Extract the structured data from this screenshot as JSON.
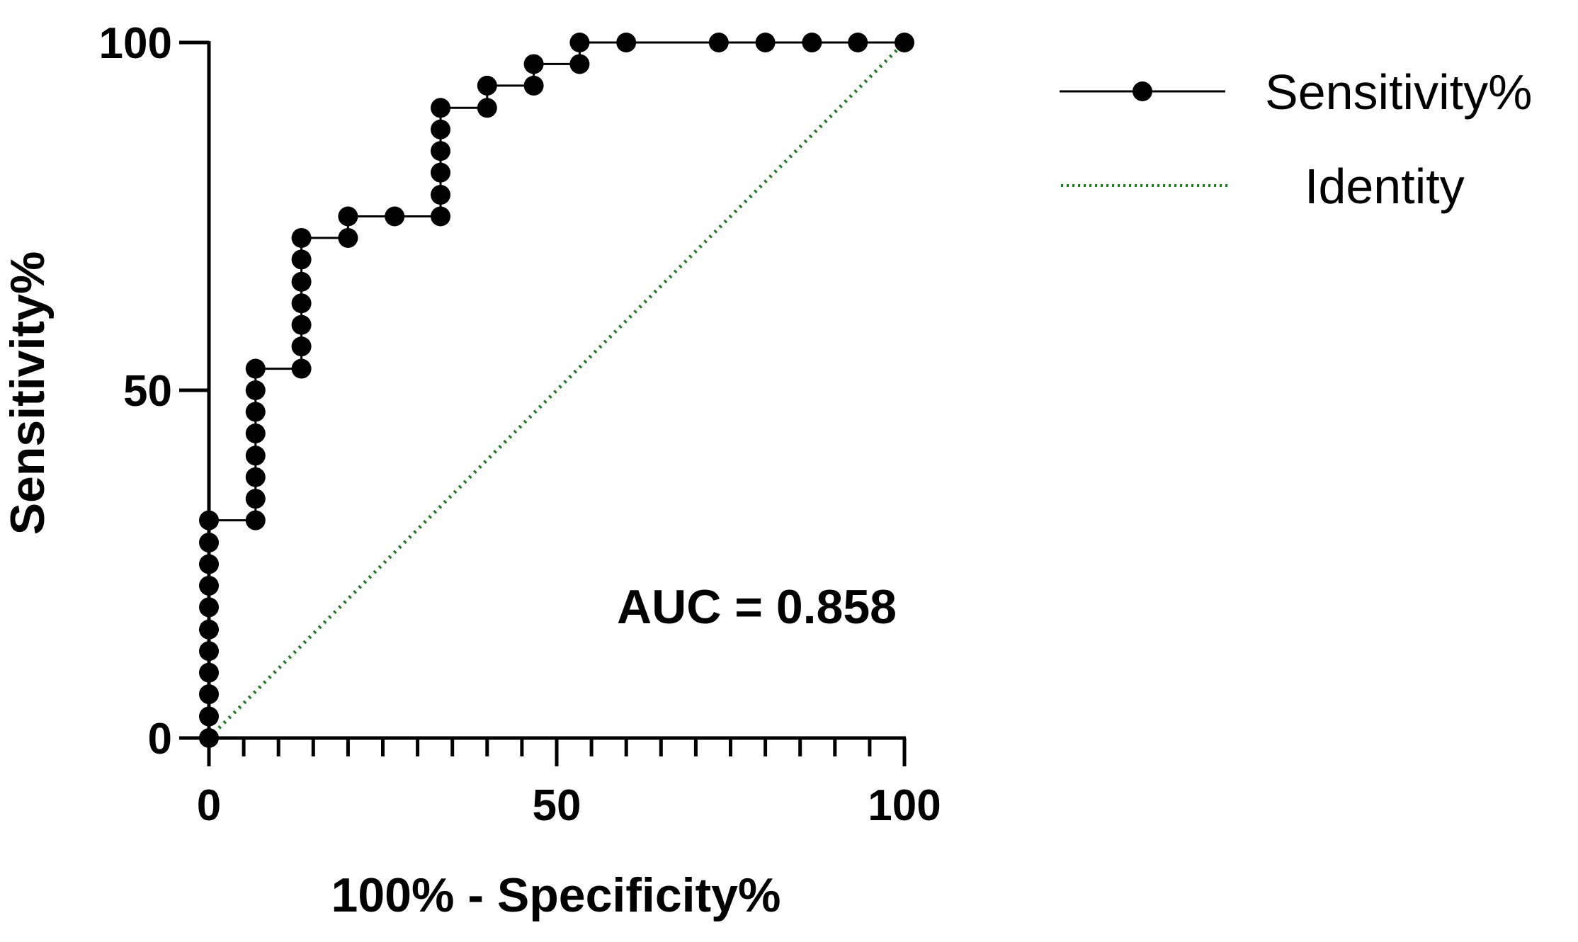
{
  "chart_data": {
    "type": "line",
    "xlabel": "100% - Specificity%",
    "ylabel": "Sensitivity%",
    "xlim": [
      0,
      100
    ],
    "ylim": [
      0,
      100
    ],
    "x_ticks_major": [
      0,
      50,
      100
    ],
    "y_ticks_major": [
      0,
      50,
      100
    ],
    "x_tick_labels": [
      "0",
      "50",
      "100"
    ],
    "y_tick_labels": [
      "0",
      "50",
      "100"
    ],
    "grid": false,
    "legend_position": "top-right",
    "annotation": "AUC = 0.858",
    "colors": {
      "sensitivity": "#000000",
      "identity": "#1e7b1e"
    },
    "series": [
      {
        "name": "Sensitivity%",
        "style": "solid line with filled circle markers",
        "points": [
          [
            0,
            0
          ],
          [
            0,
            3.1
          ],
          [
            0,
            6.3
          ],
          [
            0,
            9.4
          ],
          [
            0,
            12.5
          ],
          [
            0,
            15.6
          ],
          [
            0,
            18.8
          ],
          [
            0,
            21.9
          ],
          [
            0,
            25.0
          ],
          [
            0,
            28.1
          ],
          [
            0,
            31.3
          ],
          [
            6.7,
            31.3
          ],
          [
            6.7,
            34.4
          ],
          [
            6.7,
            37.5
          ],
          [
            6.7,
            40.6
          ],
          [
            6.7,
            43.8
          ],
          [
            6.7,
            46.9
          ],
          [
            6.7,
            50.0
          ],
          [
            6.7,
            53.1
          ],
          [
            13.3,
            53.1
          ],
          [
            13.3,
            56.3
          ],
          [
            13.3,
            59.4
          ],
          [
            13.3,
            62.5
          ],
          [
            13.3,
            65.6
          ],
          [
            13.3,
            68.8
          ],
          [
            13.3,
            71.9
          ],
          [
            20.0,
            71.9
          ],
          [
            20.0,
            75.0
          ],
          [
            26.7,
            75.0
          ],
          [
            33.3,
            75.0
          ],
          [
            33.3,
            78.1
          ],
          [
            33.3,
            81.3
          ],
          [
            33.3,
            84.4
          ],
          [
            33.3,
            87.5
          ],
          [
            33.3,
            90.6
          ],
          [
            40.0,
            90.6
          ],
          [
            40.0,
            93.8
          ],
          [
            46.7,
            93.8
          ],
          [
            46.7,
            96.9
          ],
          [
            53.3,
            96.9
          ],
          [
            53.3,
            100
          ],
          [
            60.0,
            100
          ],
          [
            73.3,
            100
          ],
          [
            80.0,
            100
          ],
          [
            86.7,
            100
          ],
          [
            93.3,
            100
          ],
          [
            100,
            100
          ]
        ]
      },
      {
        "name": "Identity",
        "style": "dotted green line",
        "points": [
          [
            0,
            0
          ],
          [
            100,
            100
          ]
        ]
      }
    ]
  }
}
